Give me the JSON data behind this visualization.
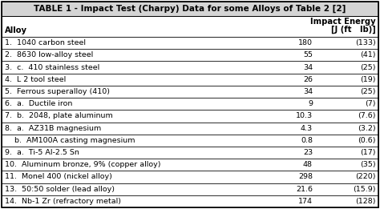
{
  "title": "TABLE 1 - Impact Test (Charpy) Data for some Alloys of Table 2 [2]",
  "col_header_left": "Alloy",
  "col_header_right_line1": "Impact Energy",
  "col_header_right_line2": "[J (ft   lb)]",
  "rows": [
    {
      "alloy": "1.  1040 carbon steel",
      "j": "180",
      "ftlb": "(133)"
    },
    {
      "alloy": "2.  8630 low-alloy steel",
      "j": "55",
      "ftlb": "(41)"
    },
    {
      "alloy": "3.  c.  410 stainless steel",
      "j": "34",
      "ftlb": "(25)"
    },
    {
      "alloy": "4.  L 2 tool steel",
      "j": "26",
      "ftlb": "(19)"
    },
    {
      "alloy": "5.  Ferrous superalloy (410)",
      "j": "34",
      "ftlb": "(25)"
    },
    {
      "alloy": "6.  a.  Ductile iron",
      "j": "9",
      "ftlb": "(7)"
    },
    {
      "alloy": "7.  b.  2048, plate aluminum",
      "j": "10.3",
      "ftlb": "(7.6)"
    },
    {
      "alloy": "8.  a.  AZ31B magnesium",
      "j": "4.3",
      "ftlb": "(3.2)"
    },
    {
      "alloy": "    b.  AM100A casting magnesium",
      "j": "0.8",
      "ftlb": "(0.6)"
    },
    {
      "alloy": "9.  a.  Ti-5 Al-2.5 Sn",
      "j": "23",
      "ftlb": "(17)"
    },
    {
      "alloy": "10.  Aluminum bronze, 9% (copper alloy)",
      "j": "48",
      "ftlb": "(35)"
    },
    {
      "alloy": "11.  Monel 400 (nickel alloy)",
      "j": "298",
      "ftlb": "(220)"
    },
    {
      "alloy": "13.  50:50 solder (lead alloy)",
      "j": "21.6",
      "ftlb": "(15.9)"
    },
    {
      "alloy": "14.  Nb-1 Zr (refractory metal)",
      "j": "174",
      "ftlb": "(128)"
    }
  ],
  "bg_color": "#ffffff",
  "title_bg": "#d4d4d4",
  "header_bg": "#ffffff",
  "row_bg": "#ffffff",
  "border_color": "#000000",
  "text_color": "#000000",
  "font_size": 6.8,
  "title_font_size": 7.5,
  "header_font_size": 7.2
}
